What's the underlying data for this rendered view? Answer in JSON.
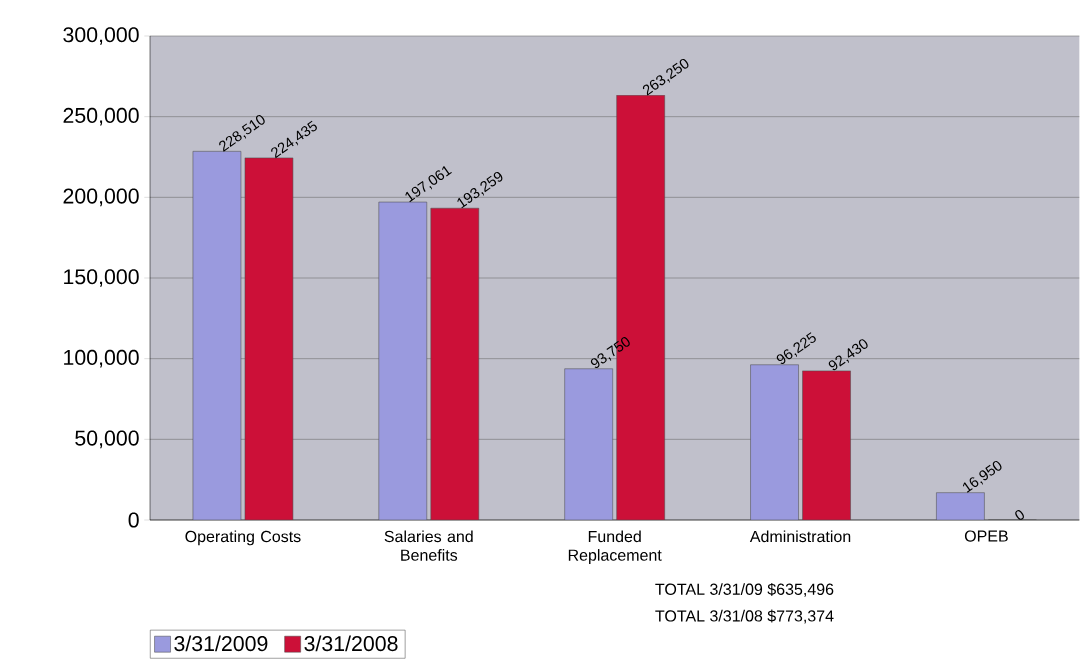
{
  "chart_data": {
    "type": "bar",
    "categories": [
      "Operating Costs",
      "Salaries and Benefits",
      "Funded Replacement",
      "Administration",
      "OPEB"
    ],
    "series": [
      {
        "name": "3/31/2009",
        "color": "#9a9ade",
        "values": [
          228510,
          197061,
          93750,
          96225,
          16950
        ],
        "value_labels": [
          "228,510",
          "197,061",
          "93,750",
          "96,225",
          "16,950"
        ]
      },
      {
        "name": "3/31/2008",
        "color": "#cc1038",
        "values": [
          224435,
          193259,
          263250,
          92430,
          0
        ],
        "value_labels": [
          "224,435",
          "193,259",
          "263,250",
          "92,430",
          "0"
        ]
      }
    ],
    "ylim": [
      0,
      300000
    ],
    "yticks": [
      0,
      {
        "value": 50000,
        "label": "50,000"
      },
      {
        "value": 100000,
        "label": "100,000"
      },
      {
        "value": 150000,
        "label": "150,000"
      },
      {
        "value": 200000,
        "label": "200,000"
      },
      {
        "value": 250000,
        "label": "250,000"
      },
      {
        "value": 300000,
        "label": "300,000"
      }
    ],
    "grid": "y",
    "legend": "bottom left",
    "annotations": [
      "TOTAL 3/31/09 $635,496",
      "TOTAL 3/31/08 $773,374"
    ]
  }
}
